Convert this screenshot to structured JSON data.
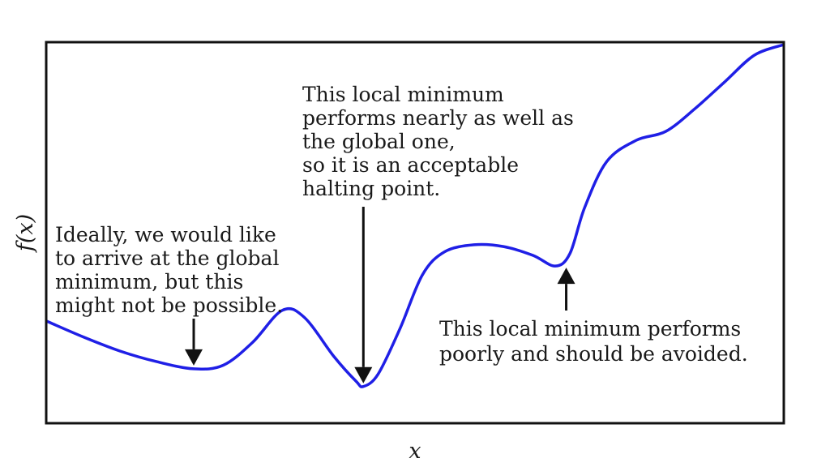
{
  "chart_data": {
    "type": "line",
    "title": "",
    "xlabel": "x",
    "ylabel": "f(x)",
    "xlim": [
      0,
      10
    ],
    "ylim": [
      0,
      10
    ],
    "grid": false,
    "legend": "none",
    "series": [
      {
        "color": "#1f1fe6",
        "x": [
          0,
          0.5,
          1,
          1.5,
          2,
          2.4,
          2.8,
          3.2,
          3.5,
          3.9,
          4.2,
          4.3,
          4.5,
          4.8,
          5.1,
          5.4,
          5.8,
          6.2,
          6.6,
          6.9,
          7.1,
          7.3,
          7.6,
          8.0,
          8.4,
          8.8,
          9.2,
          9.6,
          10.0
        ],
        "y": [
          2.2,
          1.75,
          1.35,
          1.05,
          0.85,
          0.95,
          1.6,
          2.5,
          2.3,
          1.2,
          0.5,
          0.35,
          0.7,
          2.0,
          3.5,
          4.15,
          4.35,
          4.3,
          4.05,
          3.75,
          4.1,
          5.4,
          6.7,
          7.3,
          7.55,
          8.2,
          8.95,
          9.7,
          10.0
        ]
      }
    ],
    "annotations": [
      {
        "lines": [
          "Ideally, we would like",
          "to arrive at the global",
          "minimum, but this",
          "might not be possible."
        ],
        "target": {
          "x": 2.0,
          "y": 0.85
        },
        "arrow": "down"
      },
      {
        "lines": [
          "This local minimum",
          "performs nearly as well as",
          "the global one,",
          "so it is an acceptable",
          "halting point."
        ],
        "target": {
          "x": 4.3,
          "y": 0.35
        },
        "arrow": "down"
      },
      {
        "lines": [
          "This local minimum performs",
          "poorly and should be avoided."
        ],
        "target": {
          "x": 7.05,
          "y": 3.75
        },
        "arrow": "up"
      }
    ]
  }
}
